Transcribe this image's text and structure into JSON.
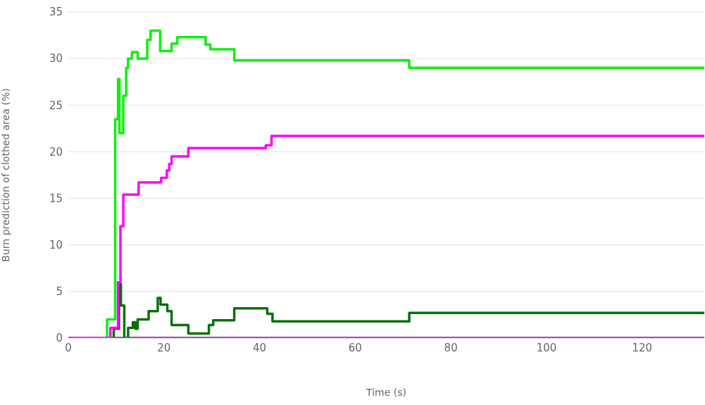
{
  "chart_data": {
    "type": "step",
    "xlabel": "Time (s)",
    "ylabel": "Burn prediction of clothed area (%)",
    "xlim": [
      0,
      133
    ],
    "xticks": [
      0,
      20,
      40,
      60,
      80,
      100,
      120
    ],
    "ylim": [
      0,
      35
    ],
    "yticks": [
      0,
      5,
      10,
      15,
      20,
      25,
      30,
      35
    ],
    "grid": "y",
    "marker": "none",
    "line_style": "solid",
    "series": [
      {
        "color": "#800080",
        "x": [
          0,
          133
        ],
        "values": [
          0,
          0
        ]
      },
      {
        "color": "#11ee11",
        "x": [
          0,
          8.1,
          9.8,
          10.4,
          10.7,
          11.5,
          12.1,
          12.5,
          13.3,
          14.5,
          16.5,
          17.2,
          19.2,
          21.6,
          22.8,
          28.7,
          29.7,
          34.7,
          71.3,
          133
        ],
        "values": [
          0,
          2,
          23.5,
          27.8,
          22,
          26,
          29,
          30,
          30.7,
          30,
          32,
          33,
          30.8,
          31.6,
          32.3,
          31.5,
          31,
          29.8,
          29,
          29
        ]
      },
      {
        "color": "#0a700a",
        "x": [
          0,
          9.5,
          10.6,
          11,
          11.7,
          12.5,
          13.5,
          14,
          14.5,
          16.8,
          18.7,
          19.3,
          20.7,
          21.6,
          25.1,
          29.4,
          30.3,
          34.7,
          41.6,
          42.7,
          71.3,
          133
        ],
        "values": [
          0,
          1,
          5.8,
          3.5,
          0,
          1.1,
          1.7,
          1,
          2,
          2.9,
          4.3,
          3.6,
          2.9,
          1.4,
          0.5,
          1.4,
          1.9,
          3.2,
          2.6,
          1.8,
          2.7,
          2.7
        ]
      },
      {
        "color": "#ff00ff",
        "x": [
          0,
          8.8,
          10.4,
          10.9,
          11.5,
          14.7,
          19.4,
          20.6,
          21.1,
          21.6,
          25.1,
          41.3,
          42.5,
          133
        ],
        "values": [
          0,
          1.1,
          6,
          12,
          15.4,
          16.7,
          17.2,
          18,
          18.7,
          19.5,
          20.4,
          20.7,
          21.7,
          21.7
        ]
      }
    ]
  }
}
